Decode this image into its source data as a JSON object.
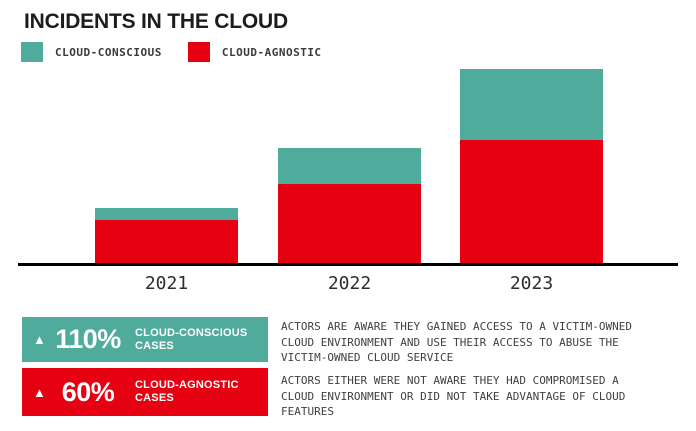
{
  "chart_data": {
    "type": "bar",
    "stacked": true,
    "title": "INCIDENTS IN THE CLOUD",
    "categories": [
      "2021",
      "2022",
      "2023"
    ],
    "series": [
      {
        "name": "CLOUD-CONSCIOUS",
        "color": "#4FAB9C",
        "values": [
          12,
          36,
          71
        ]
      },
      {
        "name": "CLOUD-AGNOSTIC",
        "color": "#E50012",
        "values": [
          43,
          79,
          123
        ]
      }
    ],
    "value_note": "no y-axis shown; values are relative stacked bar heights estimated in pixels",
    "ylim": [
      0,
      200
    ],
    "grid": false,
    "legend_position": "top-left",
    "axis_color": "#000000"
  },
  "stats": [
    {
      "arrow": "▲",
      "value": "110%",
      "label": "CLOUD-CONSCIOUS\nCASES",
      "color": "#4FAB9C",
      "description": "ACTORS ARE AWARE THEY GAINED ACCESS TO A VICTIM-OWNED\nCLOUD ENVIRONMENT AND USE THEIR ACCESS TO ABUSE THE\nVICTIM-OWNED CLOUD SERVICE"
    },
    {
      "arrow": "▲",
      "value": "60%",
      "label": "CLOUD-AGNOSTIC\nCASES",
      "color": "#E50012",
      "description": "ACTORS EITHER WERE NOT AWARE THEY HAD COMPROMISED A\nCLOUD ENVIRONMENT OR DID NOT TAKE ADVANTAGE OF CLOUD\nFEATURES"
    }
  ]
}
